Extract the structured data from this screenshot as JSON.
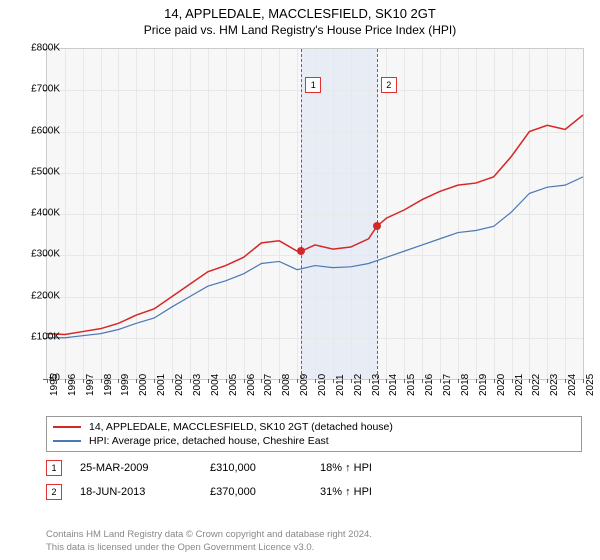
{
  "title": "14, APPLEDALE, MACCLESFIELD, SK10 2GT",
  "subtitle": "Price paid vs. HM Land Registry's House Price Index (HPI)",
  "chart": {
    "type": "line",
    "background_color": "#f7f7f7",
    "grid_color": "#e8e8e8",
    "border_color": "#cccccc",
    "xlim": [
      1995,
      2025
    ],
    "ylim": [
      0,
      800000
    ],
    "ytick_step": 100000,
    "yticks": [
      "£0",
      "£100K",
      "£200K",
      "£300K",
      "£400K",
      "£500K",
      "£600K",
      "£700K",
      "£800K"
    ],
    "xticks": [
      1995,
      1996,
      1997,
      1998,
      1999,
      2000,
      2001,
      2002,
      2003,
      2004,
      2005,
      2006,
      2007,
      2008,
      2009,
      2010,
      2011,
      2012,
      2013,
      2014,
      2015,
      2016,
      2017,
      2018,
      2019,
      2020,
      2021,
      2022,
      2023,
      2024,
      2025
    ],
    "band": {
      "from": 2009.23,
      "to": 2013.46,
      "color": "#e8edf5"
    },
    "vlines": [
      {
        "x": 2009.23,
        "color": "#e03030",
        "label": "1"
      },
      {
        "x": 2013.46,
        "color": "#e03030",
        "label": "2"
      }
    ],
    "series": [
      {
        "name": "property",
        "label": "14, APPLEDALE, MACCLESFIELD, SK10 2GT (detached house)",
        "color": "#d62728",
        "line_width": 1.5,
        "data": [
          [
            1995,
            110000
          ],
          [
            1996,
            108000
          ],
          [
            1997,
            115000
          ],
          [
            1998,
            122000
          ],
          [
            1999,
            135000
          ],
          [
            2000,
            155000
          ],
          [
            2001,
            170000
          ],
          [
            2002,
            200000
          ],
          [
            2003,
            230000
          ],
          [
            2004,
            260000
          ],
          [
            2005,
            275000
          ],
          [
            2006,
            295000
          ],
          [
            2007,
            330000
          ],
          [
            2008,
            335000
          ],
          [
            2009,
            310000
          ],
          [
            2009.23,
            310000
          ],
          [
            2010,
            325000
          ],
          [
            2011,
            315000
          ],
          [
            2012,
            320000
          ],
          [
            2013,
            340000
          ],
          [
            2013.46,
            370000
          ],
          [
            2014,
            390000
          ],
          [
            2015,
            410000
          ],
          [
            2016,
            435000
          ],
          [
            2017,
            455000
          ],
          [
            2018,
            470000
          ],
          [
            2019,
            475000
          ],
          [
            2020,
            490000
          ],
          [
            2021,
            540000
          ],
          [
            2022,
            600000
          ],
          [
            2023,
            615000
          ],
          [
            2024,
            605000
          ],
          [
            2025,
            640000
          ]
        ]
      },
      {
        "name": "hpi",
        "label": "HPI: Average price, detached house, Cheshire East",
        "color": "#4a78b5",
        "line_width": 1.2,
        "data": [
          [
            1995,
            100000
          ],
          [
            1996,
            100000
          ],
          [
            1997,
            105000
          ],
          [
            1998,
            110000
          ],
          [
            1999,
            120000
          ],
          [
            2000,
            135000
          ],
          [
            2001,
            148000
          ],
          [
            2002,
            175000
          ],
          [
            2003,
            200000
          ],
          [
            2004,
            225000
          ],
          [
            2005,
            238000
          ],
          [
            2006,
            255000
          ],
          [
            2007,
            280000
          ],
          [
            2008,
            285000
          ],
          [
            2009,
            265000
          ],
          [
            2010,
            275000
          ],
          [
            2011,
            270000
          ],
          [
            2012,
            272000
          ],
          [
            2013,
            280000
          ],
          [
            2014,
            295000
          ],
          [
            2015,
            310000
          ],
          [
            2016,
            325000
          ],
          [
            2017,
            340000
          ],
          [
            2018,
            355000
          ],
          [
            2019,
            360000
          ],
          [
            2020,
            370000
          ],
          [
            2021,
            405000
          ],
          [
            2022,
            450000
          ],
          [
            2023,
            465000
          ],
          [
            2024,
            470000
          ],
          [
            2025,
            490000
          ]
        ]
      }
    ],
    "points": [
      {
        "x": 2009.23,
        "y": 310000,
        "color": "#d62728"
      },
      {
        "x": 2013.46,
        "y": 370000,
        "color": "#d62728"
      }
    ]
  },
  "legend": {
    "items": [
      {
        "color": "#d62728",
        "label": "14, APPLEDALE, MACCLESFIELD, SK10 2GT (detached house)"
      },
      {
        "color": "#4a78b5",
        "label": "HPI: Average price, detached house, Cheshire East"
      }
    ]
  },
  "sales": [
    {
      "marker": "1",
      "marker_color": "#e03030",
      "date": "25-MAR-2009",
      "price": "£310,000",
      "hpi_delta": "18% ↑ HPI"
    },
    {
      "marker": "2",
      "marker_color": "#e03030",
      "date": "18-JUN-2013",
      "price": "£370,000",
      "hpi_delta": "31% ↑ HPI"
    }
  ],
  "footer": {
    "line1": "Contains HM Land Registry data © Crown copyright and database right 2024.",
    "line2": "This data is licensed under the Open Government Licence v3.0."
  }
}
